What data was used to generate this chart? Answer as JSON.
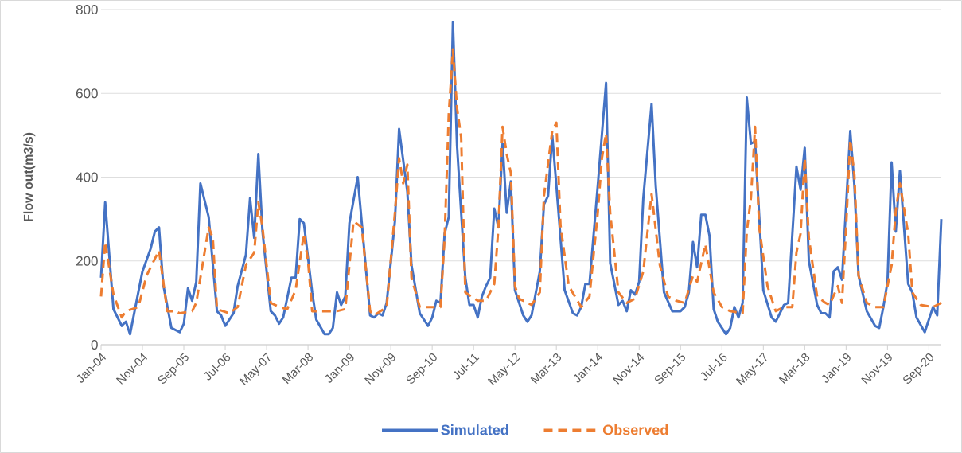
{
  "chart_data": {
    "type": "line",
    "ylabel": "Flow out(m3/s)",
    "xlim": [
      "2004-01",
      "2020-12"
    ],
    "xticks": [
      {
        "value": "2004-01",
        "label": "Jan-04"
      },
      {
        "value": "2004-11",
        "label": "Nov-04"
      },
      {
        "value": "2005-09",
        "label": "Sep-05"
      },
      {
        "value": "2006-07",
        "label": "Jul-06"
      },
      {
        "value": "2007-05",
        "label": "May-07"
      },
      {
        "value": "2008-03",
        "label": "Mar-08"
      },
      {
        "value": "2009-01",
        "label": "Jan-09"
      },
      {
        "value": "2009-11",
        "label": "Nov-09"
      },
      {
        "value": "2010-09",
        "label": "Sep-10"
      },
      {
        "value": "2011-07",
        "label": "Jul-11"
      },
      {
        "value": "2012-05",
        "label": "May-12"
      },
      {
        "value": "2013-03",
        "label": "Mar-13"
      },
      {
        "value": "2014-01",
        "label": "Jan-14"
      },
      {
        "value": "2014-11",
        "label": "Nov-14"
      },
      {
        "value": "2015-09",
        "label": "Sep-15"
      },
      {
        "value": "2016-07",
        "label": "Jul-16"
      },
      {
        "value": "2017-05",
        "label": "May-17"
      },
      {
        "value": "2018-03",
        "label": "Mar-18"
      },
      {
        "value": "2019-01",
        "label": "Jan-19"
      },
      {
        "value": "2019-11",
        "label": "Nov-19"
      },
      {
        "value": "2020-09",
        "label": "Sep-20"
      }
    ],
    "ylim": [
      0,
      800
    ],
    "yticks": [
      0,
      200,
      400,
      600,
      800
    ],
    "grid": "y",
    "legend": "bottom",
    "marker": "none",
    "series": [
      {
        "name": "Simulated",
        "color": "#4472c4",
        "line_style": "solid",
        "x": [
          "2004-01",
          "2004-02",
          "2004-04",
          "2004-06",
          "2004-07",
          "2004-08",
          "2004-11",
          "2005-01",
          "2005-02",
          "2005-03",
          "2005-04",
          "2005-06",
          "2005-08",
          "2005-09",
          "2005-10",
          "2005-11",
          "2005-12",
          "2006-01",
          "2006-03",
          "2006-05",
          "2006-06",
          "2006-07",
          "2006-09",
          "2006-10",
          "2006-12",
          "2007-01",
          "2007-02",
          "2007-03",
          "2007-04",
          "2007-06",
          "2007-07",
          "2007-08",
          "2007-09",
          "2007-11",
          "2007-12",
          "2008-01",
          "2008-02",
          "2008-04",
          "2008-05",
          "2008-07",
          "2008-08",
          "2008-09",
          "2008-10",
          "2008-11",
          "2008-12",
          "2009-01",
          "2009-03",
          "2009-04",
          "2009-06",
          "2009-07",
          "2009-08",
          "2009-09",
          "2009-10",
          "2009-12",
          "2010-01",
          "2010-03",
          "2010-04",
          "2010-06",
          "2010-08",
          "2010-09",
          "2010-10",
          "2010-11",
          "2010-12",
          "2011-01",
          "2011-02",
          "2011-03",
          "2011-04",
          "2011-05",
          "2011-06",
          "2011-07",
          "2011-08",
          "2011-09",
          "2011-10",
          "2011-11",
          "2011-12",
          "2012-01",
          "2012-02",
          "2012-03",
          "2012-04",
          "2012-05",
          "2012-07",
          "2012-08",
          "2012-09",
          "2012-11",
          "2012-12",
          "2013-01",
          "2013-02",
          "2013-03",
          "2013-05",
          "2013-07",
          "2013-08",
          "2013-09",
          "2013-10",
          "2013-11",
          "2014-01",
          "2014-03",
          "2014-04",
          "2014-06",
          "2014-07",
          "2014-08",
          "2014-09",
          "2014-10",
          "2014-11",
          "2014-12",
          "2015-02",
          "2015-03",
          "2015-05",
          "2015-07",
          "2015-09",
          "2015-10",
          "2015-11",
          "2015-12",
          "2016-01",
          "2016-02",
          "2016-03",
          "2016-04",
          "2016-05",
          "2016-06",
          "2016-08",
          "2016-09",
          "2016-10",
          "2016-11",
          "2016-12",
          "2017-01",
          "2017-02",
          "2017-03",
          "2017-05",
          "2017-07",
          "2017-08",
          "2017-10",
          "2017-11",
          "2018-01",
          "2018-02",
          "2018-03",
          "2018-04",
          "2018-06",
          "2018-07",
          "2018-08",
          "2018-09",
          "2018-10",
          "2018-11",
          "2018-12",
          "2019-02",
          "2019-03",
          "2019-04",
          "2019-06",
          "2019-08",
          "2019-09",
          "2019-10",
          "2019-11",
          "2019-12",
          "2020-01",
          "2020-02",
          "2020-04",
          "2020-05",
          "2020-06",
          "2020-08",
          "2020-10",
          "2020-11",
          "2020-12"
        ],
        "values": [
          160,
          340,
          85,
          45,
          55,
          25,
          175,
          230,
          270,
          280,
          145,
          40,
          30,
          50,
          135,
          105,
          150,
          385,
          305,
          80,
          70,
          45,
          75,
          140,
          215,
          350,
          255,
          455,
          270,
          80,
          70,
          50,
          65,
          160,
          160,
          300,
          290,
          125,
          60,
          25,
          25,
          40,
          125,
          95,
          115,
          290,
          400,
          290,
          70,
          65,
          75,
          70,
          100,
          295,
          515,
          365,
          190,
          75,
          45,
          65,
          105,
          100,
          265,
          305,
          770,
          475,
          315,
          160,
          95,
          95,
          65,
          115,
          140,
          160,
          325,
          280,
          480,
          315,
          390,
          130,
          70,
          55,
          70,
          175,
          335,
          355,
          500,
          380,
          130,
          75,
          70,
          90,
          145,
          145,
          380,
          625,
          195,
          95,
          105,
          80,
          130,
          120,
          150,
          350,
          575,
          380,
          125,
          80,
          80,
          90,
          125,
          245,
          185,
          310,
          310,
          260,
          85,
          55,
          25,
          40,
          90,
          65,
          100,
          590,
          480,
          485,
          130,
          65,
          55,
          95,
          100,
          425,
          370,
          470,
          200,
          95,
          75,
          75,
          65,
          175,
          185,
          155,
          510,
          380,
          165,
          80,
          45,
          40,
          90,
          150,
          435,
          270,
          415,
          145,
          125,
          65,
          30,
          90,
          70,
          300
        ]
      },
      {
        "name": "Observed",
        "color": "#ed7d31",
        "line_style": "dashed",
        "x": [
          "2004-01",
          "2004-02",
          "2004-04",
          "2004-06",
          "2004-07",
          "2004-10",
          "2004-12",
          "2005-03",
          "2005-05",
          "2005-07",
          "2005-08",
          "2005-11",
          "2005-12",
          "2006-03",
          "2006-04",
          "2006-05",
          "2006-08",
          "2006-10",
          "2006-12",
          "2007-02",
          "2007-03",
          "2007-04",
          "2007-06",
          "2007-08",
          "2007-10",
          "2007-12",
          "2008-02",
          "2008-03",
          "2008-04",
          "2008-07",
          "2008-10",
          "2008-12",
          "2009-02",
          "2009-04",
          "2009-06",
          "2009-07",
          "2009-10",
          "2009-12",
          "2010-01",
          "2010-02",
          "2010-03",
          "2010-04",
          "2010-06",
          "2010-09",
          "2010-11",
          "2010-12",
          "2011-01",
          "2011-02",
          "2011-03",
          "2011-04",
          "2011-05",
          "2011-08",
          "2011-10",
          "2011-12",
          "2012-01",
          "2012-02",
          "2012-03",
          "2012-04",
          "2012-05",
          "2012-06",
          "2012-09",
          "2012-11",
          "2012-12",
          "2013-02",
          "2013-03",
          "2013-04",
          "2013-06",
          "2013-09",
          "2013-11",
          "2014-01",
          "2014-02",
          "2014-03",
          "2014-04",
          "2014-06",
          "2014-08",
          "2014-10",
          "2014-12",
          "2015-02",
          "2015-04",
          "2015-06",
          "2015-08",
          "2015-10",
          "2015-12",
          "2016-01",
          "2016-03",
          "2016-05",
          "2016-07",
          "2016-09",
          "2016-12",
          "2017-01",
          "2017-02",
          "2017-03",
          "2017-04",
          "2017-06",
          "2017-08",
          "2017-10",
          "2017-12",
          "2018-01",
          "2018-02",
          "2018-03",
          "2018-04",
          "2018-06",
          "2018-08",
          "2018-09",
          "2018-11",
          "2018-12",
          "2019-01",
          "2019-02",
          "2019-03",
          "2019-04",
          "2019-06",
          "2019-08",
          "2019-10",
          "2019-12",
          "2020-01",
          "2020-02",
          "2020-04",
          "2020-05",
          "2020-07",
          "2020-10",
          "2020-11",
          "2020-12"
        ],
        "values": [
          115,
          245,
          120,
          65,
          80,
          90,
          165,
          225,
          80,
          80,
          75,
          80,
          100,
          280,
          255,
          85,
          75,
          90,
          190,
          220,
          340,
          280,
          100,
          90,
          85,
          130,
          265,
          200,
          80,
          80,
          80,
          85,
          295,
          280,
          80,
          70,
          90,
          315,
          445,
          385,
          430,
          160,
          90,
          90,
          90,
          255,
          550,
          705,
          565,
          495,
          125,
          105,
          105,
          145,
          280,
          520,
          455,
          410,
          140,
          110,
          95,
          125,
          355,
          510,
          530,
          285,
          140,
          90,
          115,
          315,
          445,
          505,
          315,
          125,
          100,
          110,
          175,
          360,
          190,
          115,
          105,
          100,
          165,
          150,
          240,
          125,
          90,
          80,
          75,
          270,
          350,
          520,
          280,
          140,
          80,
          90,
          90,
          220,
          265,
          445,
          255,
          115,
          100,
          95,
          140,
          100,
          280,
          490,
          405,
          165,
          100,
          90,
          90,
          190,
          320,
          385,
          265,
          125,
          95,
          90,
          95,
          100
        ]
      }
    ]
  }
}
